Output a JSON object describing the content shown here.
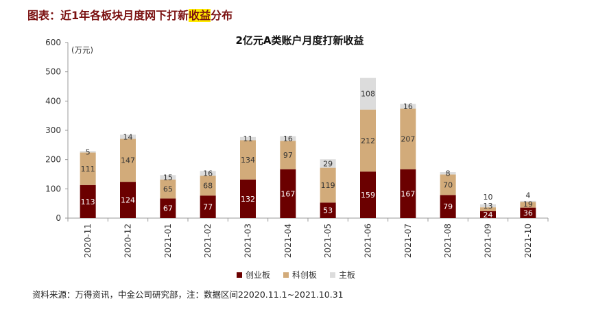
{
  "header": {
    "title_pre": "图表：近1年各板块月度网下打新",
    "title_highlight": "收益",
    "title_post": "分布"
  },
  "source": "资料来源：万得资讯，中金公司研究部，注：数据区间22020.11.1~2021.10.31",
  "chart_data": {
    "type": "bar",
    "stacked": true,
    "title": "2亿元A类账户月度打新收益",
    "ylabel": "(万元)",
    "ylim": [
      0,
      600
    ],
    "yticks": [
      0,
      100,
      200,
      300,
      400,
      500,
      600
    ],
    "categories": [
      "2020-11",
      "2020-12",
      "2021-01",
      "2021-02",
      "2021-03",
      "2021-04",
      "2021-05",
      "2021-06",
      "2021-07",
      "2021-08",
      "2021-09",
      "2021-10"
    ],
    "series": [
      {
        "name": "创业板",
        "color": "#6b0000",
        "label_color": "#ffffff",
        "values": [
          113,
          124,
          67,
          77,
          132,
          167,
          53,
          159,
          167,
          79,
          24,
          36
        ]
      },
      {
        "name": "科创板",
        "color": "#d2ab7a",
        "label_color": "#333333",
        "values": [
          111,
          147,
          65,
          68,
          134,
          97,
          119,
          212,
          207,
          70,
          13,
          19
        ]
      },
      {
        "name": "主板",
        "color": "#dcdcdc",
        "label_color": "#333333",
        "values": [
          5,
          14,
          15,
          16,
          11,
          16,
          29,
          108,
          16,
          8,
          10,
          4
        ]
      }
    ],
    "legend_position": "bottom",
    "grid": false
  }
}
